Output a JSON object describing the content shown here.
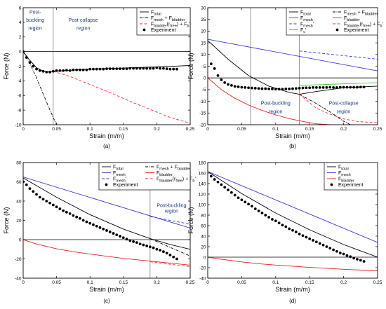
{
  "chart_data": [
    {
      "type": "line",
      "panel_label": "(a)",
      "xlabel": "Strain (m/m)",
      "ylabel": "Force (N)",
      "xlim": [
        0,
        0.25
      ],
      "ylim": [
        -10,
        6
      ],
      "x_ticks": [
        0,
        0.05,
        0.1,
        0.15,
        0.2,
        0.25
      ],
      "x_tick_labels": [
        "0",
        "0.05",
        "0.1",
        "0.15",
        "0.2",
        "0.25"
      ],
      "y_ticks": [
        -10,
        -8,
        -6,
        -4,
        -2,
        0,
        2,
        4,
        6
      ],
      "y_tick_labels": [
        "-10",
        "-8",
        "-6",
        "-4",
        "-2",
        "0",
        "2",
        "4",
        "6"
      ],
      "grid": false,
      "legend_position": "top-right",
      "legend_columns": 1,
      "vlines": [
        0.045
      ],
      "annotations": [
        {
          "text": "Post-",
          "x": 0.018,
          "y": 5.2
        },
        {
          "text": "buckling",
          "x": 0.018,
          "y": 4.1
        },
        {
          "text": "region",
          "x": 0.018,
          "y": 3.0
        },
        {
          "text": "Post-collapse",
          "x": 0.09,
          "y": 4.1
        },
        {
          "text": "region",
          "x": 0.09,
          "y": 3.0
        }
      ],
      "series": [
        {
          "legend": "F_total",
          "style": "solid",
          "color": "#000000",
          "x": [
            0,
            0.01,
            0.02,
            0.03,
            0.04,
            0.045,
            0.06,
            0.1,
            0.15,
            0.2,
            0.25
          ],
          "y": [
            0,
            -1.2,
            -2.2,
            -2.7,
            -2.8,
            -2.7,
            -2.6,
            -2.4,
            -2.25,
            -2.1,
            -1.9
          ]
        },
        {
          "legend": "F_mesh + F_bladder",
          "style": "dashdot",
          "color": "#000000",
          "x": [
            0,
            0.01,
            0.02,
            0.03,
            0.04,
            0.05
          ],
          "y": [
            0,
            -1.6,
            -3.6,
            -5.8,
            -8.0,
            -10.0
          ]
        },
        {
          "legend": "F_bladder(r_free) + F_b'",
          "style": "dashed",
          "color": "#ff2a2a",
          "x": [
            0.045,
            0.07,
            0.1,
            0.13,
            0.16,
            0.19,
            0.22,
            0.25
          ],
          "y": [
            -2.7,
            -3.4,
            -4.5,
            -5.6,
            -6.8,
            -7.9,
            -9.0,
            -9.8
          ]
        },
        {
          "legend": "Experiment",
          "style": "dots",
          "color": "#000000",
          "x": [
            0,
            0.005,
            0.01,
            0.015,
            0.02,
            0.025,
            0.03,
            0.035,
            0.04,
            0.045,
            0.05,
            0.055,
            0.06,
            0.065,
            0.07,
            0.075,
            0.08,
            0.085,
            0.09,
            0.095,
            0.1,
            0.105,
            0.11,
            0.115,
            0.12,
            0.125,
            0.13,
            0.135,
            0.14,
            0.145,
            0.15,
            0.155,
            0.16,
            0.165,
            0.17,
            0.175,
            0.18,
            0.185,
            0.19,
            0.195,
            0.2,
            0.205,
            0.21,
            0.215,
            0.22,
            0.225,
            0.23
          ],
          "y": [
            0,
            -0.8,
            -1.5,
            -2.0,
            -2.4,
            -2.6,
            -2.7,
            -2.8,
            -2.8,
            -2.7,
            -2.6,
            -2.6,
            -2.6,
            -2.55,
            -2.6,
            -2.5,
            -2.5,
            -2.5,
            -2.5,
            -2.5,
            -2.4,
            -2.4,
            -2.4,
            -2.4,
            -2.4,
            -2.35,
            -2.35,
            -2.35,
            -2.35,
            -2.35,
            -2.35,
            -2.35,
            -2.3,
            -2.3,
            -2.3,
            -2.3,
            -2.3,
            -2.3,
            -2.3,
            -2.3,
            -2.2,
            -2.3,
            -2.3,
            -2.35,
            -2.4,
            -2.4,
            -2.4
          ]
        }
      ]
    },
    {
      "type": "line",
      "panel_label": "(b)",
      "xlabel": "Strain (m/m)",
      "ylabel": "Force (N)",
      "xlim": [
        0,
        0.25
      ],
      "ylim": [
        -20,
        30
      ],
      "x_ticks": [
        0,
        0.05,
        0.1,
        0.15,
        0.2,
        0.25
      ],
      "x_tick_labels": [
        "0",
        "0.05",
        "0.1",
        "0.15",
        "0.2",
        "0.25"
      ],
      "y_ticks": [
        -20,
        -15,
        -10,
        -5,
        0,
        5,
        10,
        15,
        20,
        25,
        30
      ],
      "y_tick_labels": [
        "-20",
        "-15",
        "-10",
        "-5",
        "0",
        "5",
        "10",
        "15",
        "20",
        "25",
        "30"
      ],
      "grid": false,
      "legend_position": "top-right",
      "legend_columns": 2,
      "vlines": [
        0.063,
        0.135
      ],
      "annotations": [
        {
          "text": "Post-buckling",
          "x": 0.1,
          "y": -11.5
        },
        {
          "text": "region",
          "x": 0.1,
          "y": -15
        },
        {
          "text": "Post-collapse",
          "x": 0.2,
          "y": -11.5
        },
        {
          "text": "region",
          "x": 0.2,
          "y": -15
        }
      ],
      "series": [
        {
          "legend": "F_total",
          "style": "solid",
          "color": "#000000",
          "x": [
            0,
            0.03,
            0.06,
            0.09,
            0.12,
            0.135,
            0.16,
            0.2,
            0.25
          ],
          "y": [
            16,
            8,
            1,
            -3.5,
            -6.2,
            -7,
            -5.8,
            -4.2,
            -3.5
          ]
        },
        {
          "legend": "F_mesh + F_bladder",
          "style": "dashdot",
          "color": "#000000",
          "x": [
            0.135,
            0.16,
            0.18,
            0.2,
            0.21
          ],
          "y": [
            -7,
            -11,
            -14.5,
            -18.5,
            -20
          ]
        },
        {
          "legend": "F_mesh",
          "style": "solid",
          "color": "#3b3bdc",
          "x": [
            0,
            0.25
          ],
          "y": [
            16.5,
            3
          ]
        },
        {
          "legend": "F_bladder",
          "style": "solid",
          "color": "#e82020",
          "x": [
            0,
            0.02,
            0.04,
            0.06,
            0.08,
            0.1,
            0.12,
            0.14,
            0.16,
            0.18
          ],
          "y": [
            0,
            -5,
            -8.7,
            -11.6,
            -13.9,
            -15.8,
            -17.4,
            -18.6,
            -19.6,
            -20
          ]
        },
        {
          "legend": "F_mesh'",
          "style": "dashed",
          "color": "#3b3bdc",
          "x": [
            0.135,
            0.25
          ],
          "y": [
            11.5,
            8
          ]
        },
        {
          "legend": "F_bladder(r_free) + F_b'",
          "style": "dashed",
          "color": "#ff2a2a",
          "x": [
            0.135,
            0.16,
            0.18,
            0.2,
            0.22,
            0.25
          ],
          "y": [
            -7,
            -13,
            -15.5,
            -17.5,
            -18.6,
            -19.2
          ]
        },
        {
          "legend": "F_c'",
          "style": "solid",
          "color": "#3fc43f",
          "x": [
            0.135,
            0.25
          ],
          "y": [
            -3.2,
            -2
          ]
        },
        {
          "legend": "Experiment",
          "style": "dots",
          "color": "#000000",
          "x": [
            0.005,
            0.01,
            0.015,
            0.02,
            0.025,
            0.03,
            0.035,
            0.04,
            0.045,
            0.05,
            0.055,
            0.06,
            0.065,
            0.07,
            0.075,
            0.08,
            0.085,
            0.09,
            0.095,
            0.1,
            0.105,
            0.11,
            0.115,
            0.12,
            0.125,
            0.13,
            0.135,
            0.14,
            0.145,
            0.15,
            0.155,
            0.16,
            0.165,
            0.17,
            0.175,
            0.18,
            0.185,
            0.19,
            0.195,
            0.2,
            0.205,
            0.21,
            0.215,
            0.22,
            0.225,
            0.23
          ],
          "y": [
            6,
            4,
            1,
            -0.8,
            -2,
            -2.8,
            -3.2,
            -3.6,
            -3.8,
            -4,
            -4.1,
            -4.2,
            -4.3,
            -4.4,
            -4.5,
            -4.6,
            -4.6,
            -4.7,
            -4.7,
            -4.8,
            -4.8,
            -4.8,
            -4.7,
            -4.7,
            -4.6,
            -4.5,
            -4.4,
            -4.3,
            -4.2,
            -4.2,
            -4.1,
            -4.1,
            -4.1,
            -4.1,
            -4.1,
            -4.0,
            -4.1,
            -4.1,
            -4.0,
            -4.0,
            -4.0,
            -4.0,
            -4.0,
            -4.0,
            -3.9,
            -3.9
          ]
        }
      ]
    },
    {
      "type": "line",
      "panel_label": "(c)",
      "xlabel": "Strain (m/m)",
      "ylabel": "Force (N)",
      "xlim": [
        0,
        0.25
      ],
      "ylim": [
        -40,
        80
      ],
      "x_ticks": [
        0,
        0.05,
        0.1,
        0.15,
        0.2,
        0.25
      ],
      "x_tick_labels": [
        "0",
        "0.05",
        "0.1",
        "0.15",
        "0.2",
        "0.25"
      ],
      "y_ticks": [
        -40,
        -20,
        0,
        20,
        40,
        60,
        80
      ],
      "y_tick_labels": [
        "-40",
        "-20",
        "0",
        "20",
        "40",
        "60",
        "80"
      ],
      "grid": false,
      "legend_position": "top-right",
      "legend_columns": 2,
      "vlines": [
        0.19
      ],
      "annotations": [
        {
          "text": "Post-buckling",
          "x": 0.222,
          "y": 34
        },
        {
          "text": "region",
          "x": 0.222,
          "y": 28
        }
      ],
      "series": [
        {
          "legend": "F_total",
          "style": "solid",
          "color": "#000000",
          "x": [
            0,
            0.05,
            0.1,
            0.15,
            0.19,
            0.22,
            0.25
          ],
          "y": [
            64,
            44,
            26,
            11,
            1,
            -5,
            -10
          ]
        },
        {
          "legend": "F_mesh + F_bladder",
          "style": "dashdot",
          "color": "#000000",
          "x": [
            0.19,
            0.22,
            0.25
          ],
          "y": [
            1,
            -8,
            -17
          ]
        },
        {
          "legend": "F_mesh",
          "style": "solid",
          "color": "#3b3bdc",
          "x": [
            0,
            0.25
          ],
          "y": [
            65,
            12
          ]
        },
        {
          "legend": "F_bladder",
          "style": "solid",
          "color": "#e82020",
          "x": [
            0,
            0.02,
            0.05,
            0.08,
            0.1,
            0.15,
            0.2,
            0.25
          ],
          "y": [
            0,
            -4.5,
            -9.5,
            -13,
            -15,
            -19.5,
            -23,
            -26.5
          ]
        },
        {
          "legend": "F_mesh'",
          "style": "dashed",
          "color": "#3b3bdc",
          "x": [
            0.19,
            0.25
          ],
          "y": [
            24,
            16
          ]
        },
        {
          "legend": "F_bladder(r_free) + F_b'",
          "style": "dashed",
          "color": "#ff2a2a",
          "x": [
            0.19,
            0.22,
            0.25
          ],
          "y": [
            -23,
            -25.5,
            -28
          ]
        },
        {
          "legend": "Experiment",
          "style": "dots",
          "color": "#000000",
          "x": [
            0,
            0.005,
            0.01,
            0.015,
            0.02,
            0.025,
            0.03,
            0.035,
            0.04,
            0.045,
            0.05,
            0.055,
            0.06,
            0.065,
            0.07,
            0.075,
            0.08,
            0.085,
            0.09,
            0.095,
            0.1,
            0.105,
            0.11,
            0.115,
            0.12,
            0.125,
            0.13,
            0.135,
            0.14,
            0.145,
            0.15,
            0.155,
            0.16,
            0.165,
            0.17,
            0.175,
            0.18,
            0.185,
            0.19,
            0.195,
            0.2,
            0.205,
            0.21,
            0.215,
            0.22,
            0.225,
            0.23
          ],
          "y": [
            60,
            57,
            53,
            50,
            47,
            44,
            42,
            40,
            38,
            36,
            34,
            32,
            30,
            28.5,
            27,
            25,
            23.5,
            22,
            20,
            18.5,
            17,
            15.5,
            14,
            12.5,
            11,
            9.5,
            8,
            6.5,
            5,
            3.5,
            2,
            0.5,
            -1,
            -2,
            -3,
            -4.5,
            -5.5,
            -6.5,
            -7.5,
            -8.5,
            -10,
            -11,
            -12.5,
            -14,
            -16,
            -18,
            -20
          ]
        }
      ]
    },
    {
      "type": "line",
      "panel_label": "(d)",
      "xlabel": "Strain (m/m)",
      "ylabel": "Force (N)",
      "xlim": [
        0,
        0.25
      ],
      "ylim": [
        -40,
        180
      ],
      "x_ticks": [
        0,
        0.05,
        0.1,
        0.15,
        0.2,
        0.25
      ],
      "x_tick_labels": [
        "0",
        "0.05",
        "0.1",
        "0.15",
        "0.2",
        "0.25"
      ],
      "y_ticks": [
        -40,
        -20,
        0,
        20,
        40,
        60,
        80,
        100,
        120,
        140,
        160,
        180
      ],
      "y_tick_labels": [
        "-40",
        "-20",
        "0",
        "20",
        "40",
        "60",
        "80",
        "100",
        "120",
        "140",
        "160",
        "180"
      ],
      "grid": false,
      "legend_position": "top-right",
      "legend_columns": 1,
      "vlines": [],
      "annotations": [],
      "series": [
        {
          "legend": "F_total",
          "style": "solid",
          "color": "#000000",
          "x": [
            0,
            0.05,
            0.1,
            0.15,
            0.2,
            0.25
          ],
          "y": [
            163,
            121,
            84,
            52,
            24,
            0
          ]
        },
        {
          "legend": "F_mesh",
          "style": "solid",
          "color": "#3b3bdc",
          "x": [
            0,
            0.25
          ],
          "y": [
            163,
            28
          ]
        },
        {
          "legend": "F_bladder",
          "style": "solid",
          "color": "#e82020",
          "x": [
            0,
            0.02,
            0.05,
            0.08,
            0.1,
            0.15,
            0.2,
            0.25
          ],
          "y": [
            0,
            -4,
            -9,
            -13,
            -15,
            -19.5,
            -23,
            -26
          ]
        },
        {
          "legend": "Experiment",
          "style": "dots",
          "color": "#000000",
          "x": [
            0.005,
            0.01,
            0.015,
            0.02,
            0.025,
            0.03,
            0.035,
            0.04,
            0.045,
            0.05,
            0.055,
            0.06,
            0.065,
            0.07,
            0.075,
            0.08,
            0.085,
            0.09,
            0.095,
            0.1,
            0.105,
            0.11,
            0.115,
            0.12,
            0.125,
            0.13,
            0.135,
            0.14,
            0.145,
            0.15,
            0.155,
            0.16,
            0.165,
            0.17,
            0.175,
            0.18,
            0.185,
            0.19,
            0.195,
            0.2,
            0.205,
            0.21,
            0.215,
            0.22,
            0.225,
            0.23
          ],
          "y": [
            154,
            148,
            143,
            138,
            133,
            128,
            123,
            118,
            113,
            109,
            105,
            101,
            97,
            92,
            88,
            84,
            80,
            76,
            72,
            69,
            65,
            61,
            58,
            54,
            51,
            48,
            44,
            41,
            38,
            35,
            32,
            29,
            26,
            23,
            20,
            17,
            14,
            11,
            8,
            6,
            3,
            1,
            -2,
            -4,
            -6,
            -8
          ]
        }
      ]
    }
  ]
}
